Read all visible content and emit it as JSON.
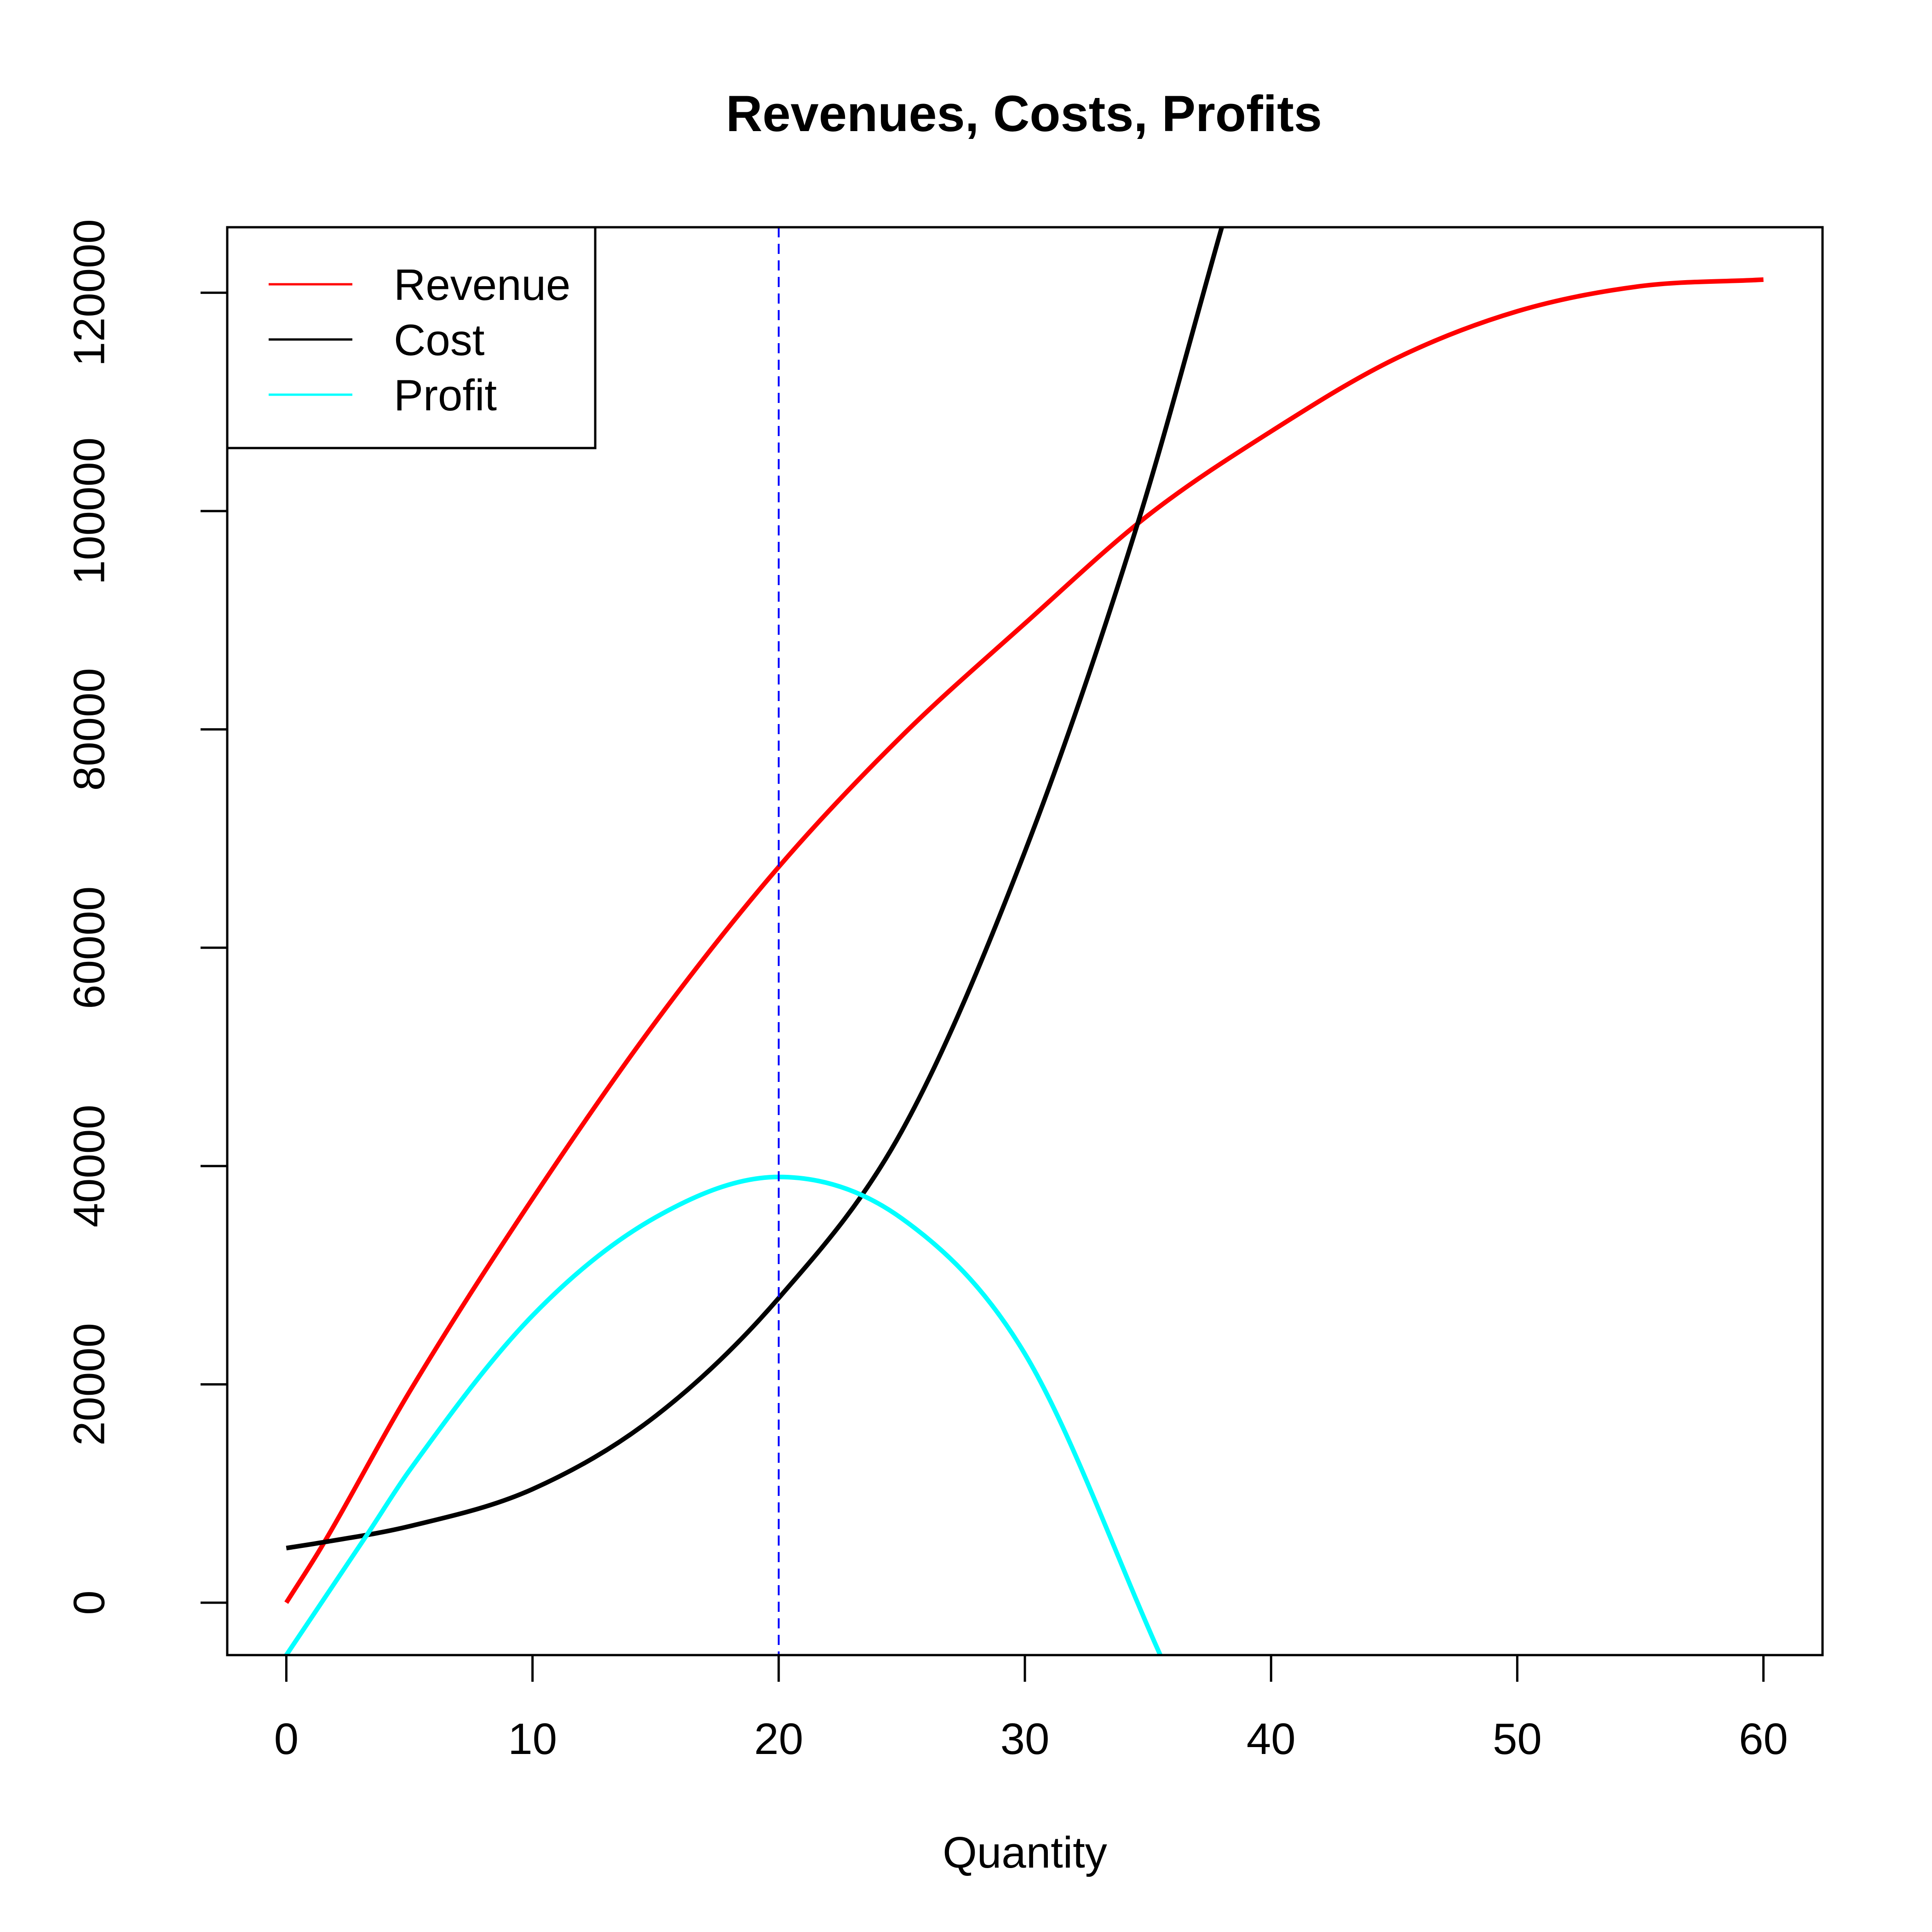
{
  "chart_data": {
    "type": "line",
    "title": "Revenues, Costs, Profits",
    "xlabel": "Quantity",
    "ylabel": "",
    "xlim": [
      -2.4,
      62.4
    ],
    "ylim": [
      -4800,
      126000
    ],
    "xticks": [
      0,
      10,
      20,
      30,
      40,
      50,
      60
    ],
    "yticks": [
      0,
      20000,
      40000,
      60000,
      80000,
      100000,
      120000
    ],
    "xtick_labels": [
      "0",
      "10",
      "20",
      "30",
      "40",
      "50",
      "60"
    ],
    "ytick_labels": [
      "0",
      "20000",
      "40000",
      "60000",
      "80000",
      "100000",
      "120000"
    ],
    "grid": false,
    "legend_position": "top-left",
    "vline": {
      "x": 20,
      "color": "#0000FF",
      "style": "dashed"
    },
    "series": [
      {
        "name": "Revenue",
        "color": "#FF0000",
        "x": [
          0,
          1.4,
          5,
          10,
          15,
          20,
          25,
          30,
          35,
          40,
          45,
          50,
          55,
          60
        ],
        "y": [
          0,
          5000,
          19300,
          37000,
          53200,
          67400,
          79400,
          89700,
          99600,
          107300,
          113900,
          118300,
          120600,
          121200
        ]
      },
      {
        "name": "Cost",
        "color": "#000000",
        "x": [
          0,
          1.4,
          5,
          10,
          15,
          20,
          25,
          30,
          34.6,
          38
        ],
        "y": [
          5000,
          5500,
          7000,
          10400,
          17100,
          27900,
          43200,
          68800,
          99000,
          126000
        ]
      },
      {
        "name": "Profit",
        "color": "#00FFFF",
        "x": [
          0,
          3.3,
          5,
          10,
          15,
          20,
          25,
          30,
          35.5
        ],
        "y": [
          -4800,
          6300,
          12100,
          26300,
          35300,
          39000,
          35200,
          22800,
          -4800
        ]
      }
    ]
  }
}
